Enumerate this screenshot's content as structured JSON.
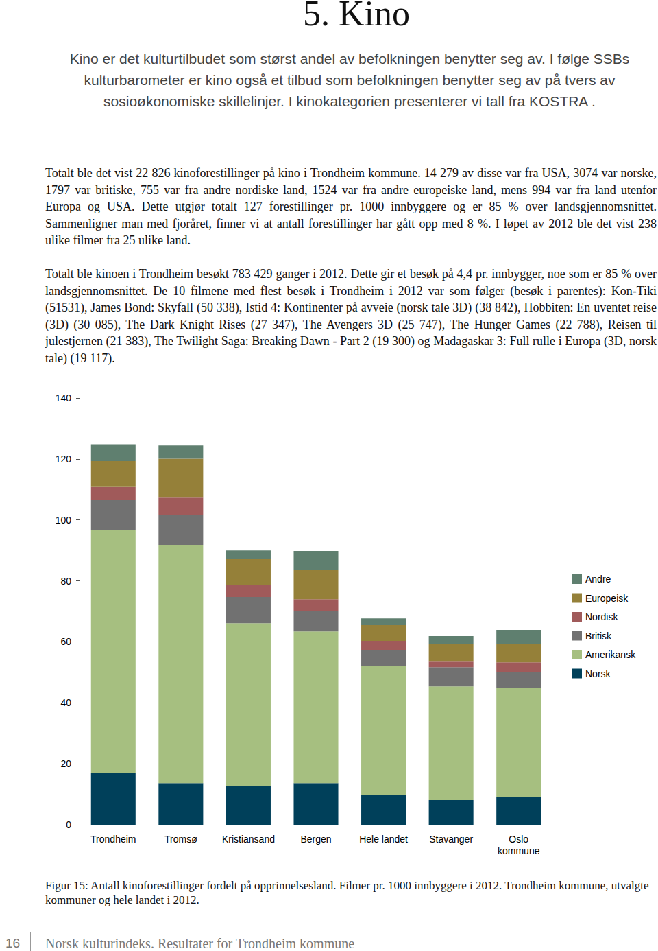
{
  "header": {
    "title": "5. Kino"
  },
  "intro": "Kino er det kulturtilbudet som størst andel av befolkningen benytter seg av. I følge SSBs kulturbarometer er kino også et tilbud som befolkningen benytter seg av på tvers av sosioøkonomiske skillelinjer. I kinokategorien presenterer vi tall fra KOSTRA .",
  "paragraphs": [
    "Totalt ble det vist 22 826 kinoforestillinger på kino i Trondheim kommune. 14 279 av disse var fra USA, 3074 var norske, 1797 var britiske, 755 var fra andre nordiske land, 1524 var fra andre europeiske land, mens 994 var fra land utenfor Europa og USA. Dette utgjør totalt 127 forestillinger pr. 1000 innbyggere og er 85 % over landsgjennomsnittet. Sammenligner man med fjoråret, finner vi at antall forestillinger har gått opp med 8 %. I løpet av 2012 ble det vist 238 ulike filmer fra 25 ulike land.",
    "Totalt ble kinoen i Trondheim besøkt 783 429 ganger i 2012. Dette gir et besøk på 4,4 pr. innbygger, noe som er 85 % over landsgjennomsnittet. De 10 filmene med flest besøk i Trondheim i 2012 var som følger (besøk i parentes): Kon-Tiki (51531), James Bond: Skyfall (50 338), Istid 4: Kontinenter på avveie (norsk tale 3D) (38 842), Hobbiten: En uventet reise (3D) (30 085), The Dark Knight Rises (27 347), The Avengers 3D (25 747), The Hunger Games (22 788), Reisen til julestjernen (21 383), The Twilight Saga: Breaking Dawn - Part 2 (19 300) og Madagaskar 3: Full rulle i Europa (3D, norsk tale) (19 117)."
  ],
  "chart_data": {
    "type": "bar",
    "stacked": true,
    "grid": false,
    "legend": "right",
    "data_labels": false,
    "categories": [
      "Trondheim",
      "Tromsø",
      "Kristiansand",
      "Bergen",
      "Hele landet",
      "Stavanger",
      "Oslo\nkommune"
    ],
    "ylim": [
      0,
      140
    ],
    "yticks": [
      0,
      20,
      40,
      60,
      80,
      100,
      120,
      140
    ],
    "series": [
      {
        "name": "Norsk",
        "color": "#00405a",
        "values": [
          17.1,
          13.7,
          12.8,
          13.7,
          9.7,
          8.1,
          9.0
        ]
      },
      {
        "name": "Amerikansk",
        "color": "#a6bf80",
        "values": [
          79.5,
          77.9,
          53.3,
          49.7,
          42.3,
          37.3,
          36.0
        ]
      },
      {
        "name": "Britisk",
        "color": "#717171",
        "values": [
          10.0,
          10.1,
          8.6,
          6.6,
          5.4,
          6.3,
          5.2
        ]
      },
      {
        "name": "Nordisk",
        "color": "#a05a5a",
        "values": [
          4.2,
          5.6,
          4.0,
          4.0,
          2.9,
          1.8,
          3.1
        ]
      },
      {
        "name": "Europeisk",
        "color": "#958039",
        "values": [
          8.5,
          12.8,
          8.4,
          9.5,
          5.2,
          5.7,
          6.1
        ]
      },
      {
        "name": "Andre",
        "color": "#5f7f6f",
        "values": [
          5.5,
          4.3,
          2.9,
          6.3,
          2.2,
          2.7,
          4.5
        ]
      }
    ]
  },
  "caption": "Figur 15: Antall kinoforestillinger fordelt på opprinnelsesland. Filmer pr. 1000 innbyggere i 2012. Trondheim kommune, utvalgte kommuner og hele landet i 2012.",
  "footer": {
    "page": "16",
    "text": "Norsk kulturindeks. Resultater for Trondheim kommune"
  }
}
